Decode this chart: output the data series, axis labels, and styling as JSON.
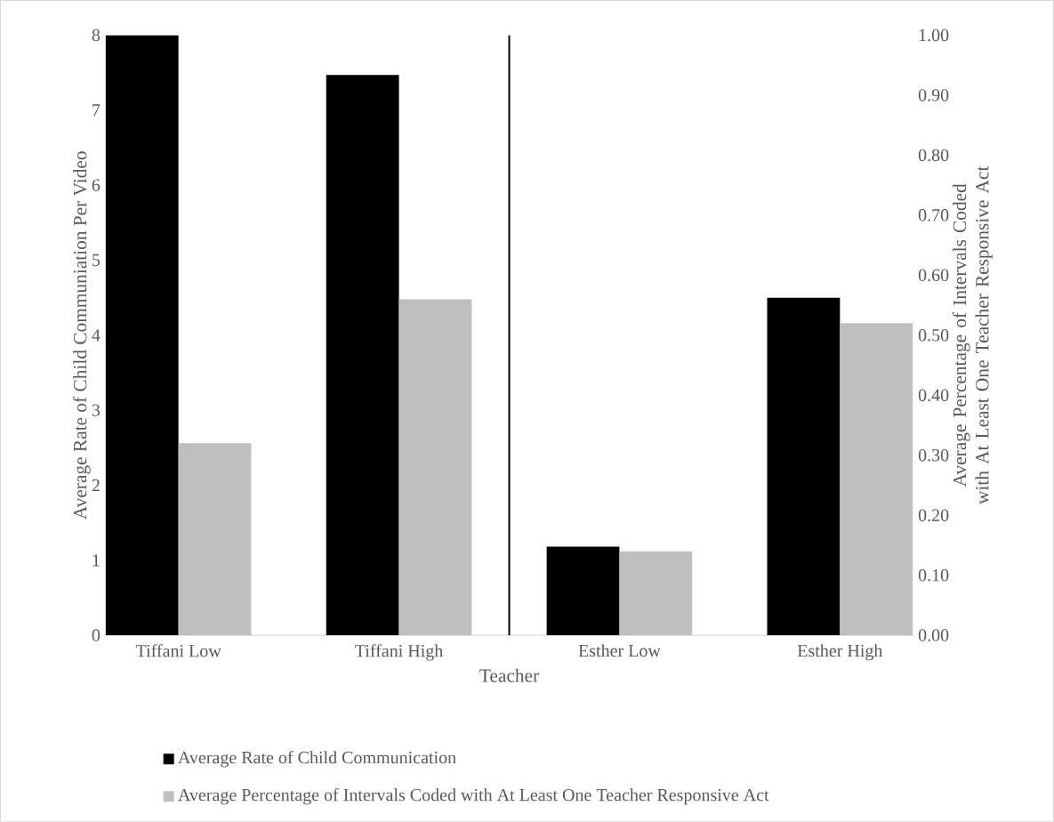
{
  "chart_data": {
    "type": "bar",
    "categories": [
      "Tiffani Low",
      "Tiffani High",
      "Esther Low",
      "Esther High"
    ],
    "xlabel": "Teacher",
    "ylabel": "Average Rate of Child Communiation Per Video",
    "y2label": "Average Percentage of Intervals Coded with At Least One Teacher Responsive Act",
    "series": [
      {
        "name": "Average Rate of Child Communication",
        "color": "#000000",
        "values": [
          8.0,
          7.47,
          1.18,
          4.5
        ]
      },
      {
        "name": "Average Percentage of Intervals Coded with At Least One Teacher Responsive Act",
        "color": "#bfbfbf",
        "axis": "y2",
        "values": [
          0.32,
          0.56,
          0.14,
          0.52
        ]
      }
    ],
    "ylim": [
      0,
      8
    ],
    "yticks": [
      0,
      1,
      2,
      3,
      4,
      5,
      6,
      7,
      8
    ],
    "y2lim": [
      0,
      1
    ],
    "y2ticks": [
      {
        "value": 0,
        "label": "0.00"
      },
      {
        "value": 0.1,
        "label": "0.10"
      },
      {
        "value": 0.2,
        "label": "0.20"
      },
      {
        "value": 0.3,
        "label": "0.30"
      },
      {
        "value": 0.4,
        "label": "0.40"
      },
      {
        "value": 0.5,
        "label": "0.50"
      },
      {
        "value": 0.6,
        "label": "0.60"
      },
      {
        "value": 0.7,
        "label": "0.70"
      },
      {
        "value": 0.8,
        "label": "0.80"
      },
      {
        "value": 0.9,
        "label": "0.90"
      },
      {
        "value": 1.0,
        "label": "1.00"
      }
    ],
    "legend": "bottom"
  }
}
